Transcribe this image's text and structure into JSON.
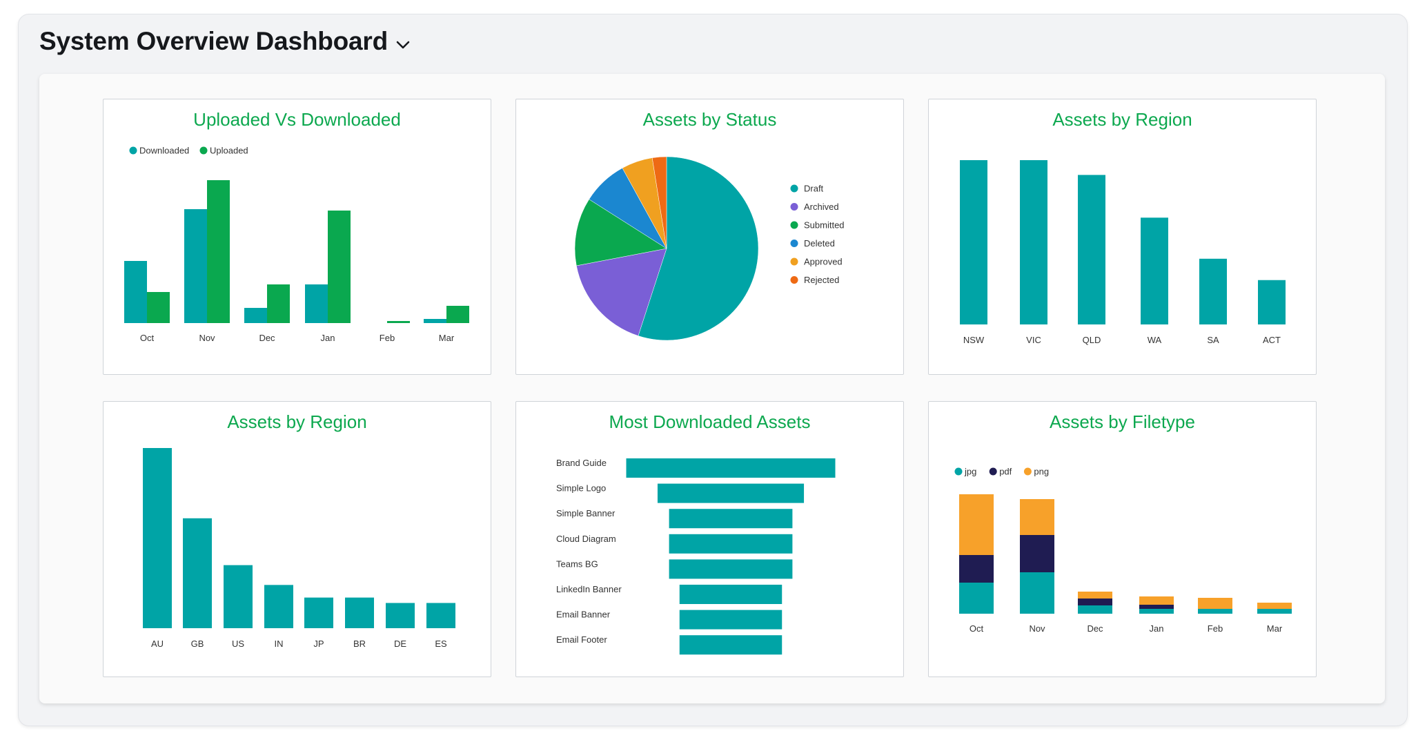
{
  "page": {
    "title": "System Overview Dashboard",
    "dropdown_icon": "chevron-down-icon"
  },
  "colors": {
    "teal": "#00a4a6",
    "green": "#0aa84f",
    "title_green": "#0da84f",
    "purple": "#7a5fd6",
    "blue": "#1b87d0",
    "orange": "#f0a020",
    "red_orange": "#ee6a14",
    "navy": "#1f1c52",
    "png_orange": "#f7a12a"
  },
  "cards": {
    "uploaded_downloaded": {
      "title": "Uploaded Vs Downloaded",
      "chart_data": {
        "type": "bar",
        "categories": [
          "Oct",
          "Nov",
          "Dec",
          "Jan",
          "Feb",
          "Mar"
        ],
        "series": [
          {
            "name": "Downloaded",
            "color": "#00a4a6",
            "values": [
              90,
              165,
              22,
              56,
              0,
              6
            ]
          },
          {
            "name": "Uploaded",
            "color": "#0aa84f",
            "values": [
              45,
              207,
              56,
              163,
              3,
              25
            ]
          }
        ],
        "legend": "top-left",
        "ylim": [
          0,
          210
        ]
      }
    },
    "assets_by_status": {
      "title": "Assets by Status",
      "chart_data": {
        "type": "pie",
        "labels": [
          "Draft",
          "Archived",
          "Submitted",
          "Deleted",
          "Approved",
          "Rejected"
        ],
        "values": [
          55,
          17,
          12,
          8,
          5.5,
          2.5
        ],
        "colors": [
          "#00a4a6",
          "#7a5fd6",
          "#0aa84f",
          "#1b87d0",
          "#f0a020",
          "#ee6a14"
        ],
        "legend": "right"
      }
    },
    "assets_by_region_au": {
      "title": "Assets by Region",
      "chart_data": {
        "type": "bar",
        "categories": [
          "NSW",
          "VIC",
          "QLD",
          "WA",
          "SA",
          "ACT"
        ],
        "values": [
          100,
          100,
          91,
          65,
          40,
          27
        ],
        "color": "#00a4a6",
        "ylim": [
          0,
          100
        ]
      }
    },
    "assets_by_region_world": {
      "title": "Assets by Region",
      "chart_data": {
        "type": "bar",
        "categories": [
          "AU",
          "GB",
          "US",
          "IN",
          "JP",
          "BR",
          "DE",
          "ES"
        ],
        "values": [
          100,
          61,
          35,
          24,
          17,
          17,
          14,
          14
        ],
        "color": "#00a4a6",
        "ylim": [
          0,
          100
        ]
      }
    },
    "most_downloaded": {
      "title": "Most Downloaded Assets",
      "chart_data": {
        "type": "bar",
        "orientation": "funnel",
        "categories": [
          "Brand Guide",
          "Simple Logo",
          "Simple Banner",
          "Cloud Diagram",
          "Teams BG",
          "LinkedIn Banner",
          "Email Banner",
          "Email Footer"
        ],
        "values": [
          100,
          70,
          59,
          59,
          59,
          49,
          49,
          49
        ],
        "color": "#00a4a6"
      }
    },
    "assets_by_filetype": {
      "title": "Assets by Filetype",
      "chart_data": {
        "type": "bar",
        "stacked": true,
        "categories": [
          "Oct",
          "Nov",
          "Dec",
          "Jan",
          "Feb",
          "Mar"
        ],
        "series": [
          {
            "name": "jpg",
            "color": "#00a4a6",
            "values": [
              45,
              60,
              12,
              7,
              7,
              7
            ]
          },
          {
            "name": "pdf",
            "color": "#1f1c52",
            "values": [
              40,
              54,
              10,
              6,
              0,
              0
            ]
          },
          {
            "name": "png",
            "color": "#f7a12a",
            "values": [
              88,
              52,
              10,
              12,
              16,
              9
            ]
          }
        ],
        "legend": "top-left",
        "ylim": [
          0,
          175
        ]
      }
    }
  }
}
